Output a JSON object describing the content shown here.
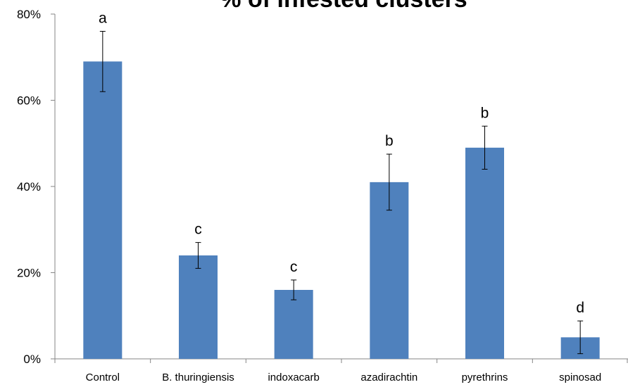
{
  "chart_data": {
    "type": "bar",
    "title": "% of infested clusters",
    "categories": [
      "Control",
      "B. thuringiensis",
      "indoxacarb",
      "azadirachtin",
      "pyrethrins",
      "spinosad"
    ],
    "series": [
      {
        "values": [
          69,
          24,
          16,
          41,
          49,
          5
        ],
        "errors": [
          7,
          3,
          2.3,
          6.5,
          5,
          3.8
        ],
        "significance": [
          "a",
          "c",
          "c",
          "b",
          "b",
          "d"
        ]
      }
    ],
    "ylim": [
      0,
      80
    ],
    "yticks": [
      "0%",
      "20%",
      "40%",
      "60%",
      "80%"
    ],
    "ytick_values": [
      0,
      20,
      40,
      60,
      80
    ],
    "xlabel": "",
    "ylabel": "",
    "grid": false,
    "legend": "none",
    "bar_color": "#4f81bd"
  }
}
